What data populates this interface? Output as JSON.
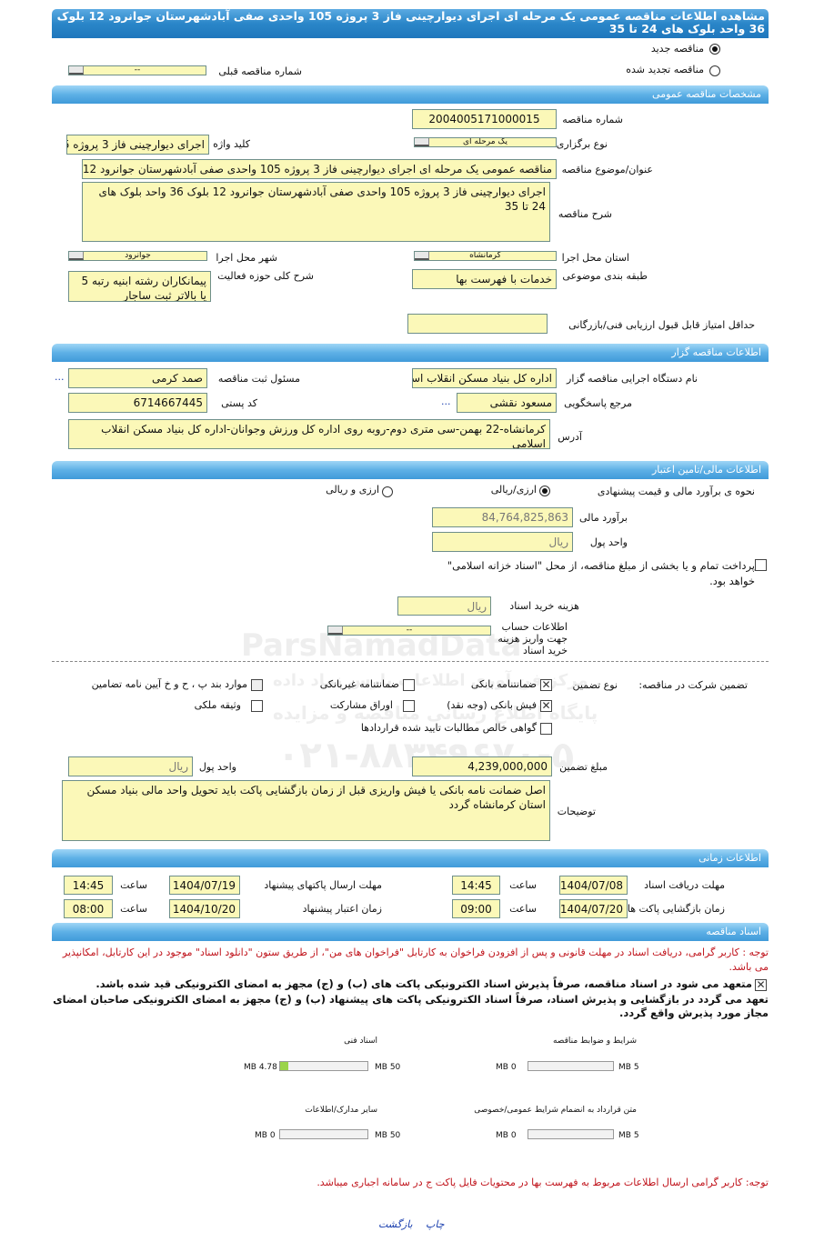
{
  "title": "مشاهده اطلاعات مناقصه عمومی یک مرحله ای اجرای دیوارچینی فاز 3 پروژه 105 واحدی صفی آبادشهرستان جوانرود 12 بلوک 36 واحد بلوک های 24 تا 35",
  "tender_type": {
    "new_label": "مناقصه جدید",
    "renewed_label": "مناقصه تجدید شده",
    "selected": "new",
    "prev_number_label": "شماره مناقصه قبلی",
    "prev_number_value": "--"
  },
  "general": {
    "section_title": "مشخصات مناقصه عمومی",
    "number_label": "شماره مناقصه",
    "number": "2004005171000015",
    "holding_type_label": "نوع برگزاری",
    "holding_type": "یک مرحله ای",
    "keyword_label": "کلید واژه",
    "keyword": "اجرای دیوارچینی فاز 3 پروژه 5",
    "subject_label": "عنوان/موضوع مناقصه",
    "subject": "مناقصه عمومی یک مرحله ای اجرای دیوارچینی فاز 3 پروژه 105 واحدی صفی آبادشهرستان جوانرود 12",
    "description_label": "شرح مناقصه",
    "description": "اجرای دیوارچینی فاز 3 پروژه 105 واحدی صفی آبادشهرستان جوانرود 12 بلوک 36 واحد بلوک های 24 تا 35",
    "province_label": "استان محل اجرا",
    "province": "کرمانشاه",
    "city_label": "شهر محل اجرا",
    "city": "جوانرود",
    "category_label": "طبقه بندی موضوعی",
    "category": "خدمات با فهرست بها",
    "activity_label": "شرح کلی حوزه فعالیت",
    "activity": "پیمانکاران رشته ابنیه رتبه 5 یا بالاتر ثبت ساجار",
    "min_score_label": "حداقل امتیاز قابل قبول ارزیابی فنی/بازرگانی",
    "min_score": ""
  },
  "organizer": {
    "section_title": "اطلاعات مناقصه گزار",
    "org_label": "نام دستگاه اجرایی مناقصه گزار",
    "org": "اداره کل بنیاد مسکن انقلاب اسلامی",
    "responsible_label": "مسئول ثبت مناقصه",
    "responsible": "صمد کرمی",
    "reference_label": "مرجع پاسخگویی",
    "reference": "مسعود نقشی",
    "postal_label": "کد پستی",
    "postal": "6714667445",
    "address_label": "آدرس",
    "address": "کرمانشاه-22 بهمن-سی متری دوم-روبه روی اداره کل ورزش وجوانان-اداره کل بنیاد مسکن انقلاب اسلامی",
    "more": "..."
  },
  "finance": {
    "section_title": "اطلاعات مالی/تامین اعتبار",
    "method_label": "نحوه ی برآورد مالی و قیمت پیشنهادی",
    "opt1": "ارزی/ریالی",
    "opt2": "ارزی و ریالی",
    "selected": "opt1",
    "estimate_label": "برآورد مالی",
    "estimate": "84,764,825,863",
    "currency_label": "واحد پول",
    "currency": "ریال",
    "treasury_text": "پرداخت تمام و یا بخشی از مبلغ مناقصه، از محل \"اسناد خزانه اسلامی\" خواهد بود.",
    "treasury_checked": false,
    "doc_fee_label": "هزینه خرید اسناد",
    "doc_fee": "ریال",
    "account_label": "اطلاعات حساب جهت واریز هزینه خرید اسناد",
    "account": "--"
  },
  "guarantee": {
    "label": "تضمین شرکت در مناقصه:",
    "type_label": "نوع تضمین",
    "options": [
      {
        "label": "ضمانتنامه بانکی",
        "checked": true
      },
      {
        "label": "ضمانتنامه غیربانکی",
        "checked": false
      },
      {
        "label": "موارد بند پ ، ح و خ آیین نامه تضامین",
        "checked": false
      },
      {
        "label": "فیش بانکی (وجه نقد)",
        "checked": true
      },
      {
        "label": "اوراق مشارکت",
        "checked": false
      },
      {
        "label": "وثیقه ملکی",
        "checked": false
      },
      {
        "label": "گواهی خالص مطالبات تایید شده قراردادها",
        "checked": false
      }
    ],
    "amount_label": "مبلغ تضمین",
    "amount": "4,239,000,000",
    "currency_label": "واحد پول",
    "currency": "ریال",
    "notes_label": "توضیحات",
    "notes": "اصل ضمانت نامه بانکی یا فیش واریزی قبل از زمان بازگشایی پاکت باید تحویل واحد مالی بنیاد مسکن استان کرمانشاه گردد"
  },
  "timing": {
    "section_title": "اطلاعات زمانی",
    "time_label": "ساعت",
    "doc_deadline_label": "مهلت دریافت اسناد",
    "doc_deadline_date": "1404/07/08",
    "doc_deadline_time": "14:45",
    "submit_deadline_label": "مهلت ارسال پاکتهای پیشنهاد",
    "submit_deadline_date": "1404/07/19",
    "submit_deadline_time": "14:45",
    "opening_label": "زمان بازگشایی پاکت ها",
    "opening_date": "1404/07/20",
    "opening_time": "09:00",
    "validity_label": "زمان اعتبار پیشنهاد",
    "validity_date": "1404/10/20",
    "validity_time": "08:00"
  },
  "documents": {
    "section_title": "اسناد مناقصه",
    "notice": "توجه : کاربر گرامی، دریافت اسناد در مهلت قانونی و پس از افزودن فراخوان به کارتابل \"فراخوان های من\"، از طریق ستون \"دانلود اسناد\" موجود در این کارتابل، امکانپذیر می باشد.",
    "commit1": "متعهد می شود در اسناد مناقصه، صرفاً پذیرش اسناد الکترونیکی پاکت های (ب) و (ج) مجهز به امضای الکترونیکی قید شده باشد.",
    "commit2": "تعهد می گردد در بازگشایی و پذیرش اسناد، صرفاً اسناد الکترونیکی پاکت های پیشنهاد (ب) و (ج) مجهز به امضای الکترونیکی صاحبان امضای مجاز مورد پذیرش واقع گردد.",
    "commit_checked": true,
    "files": [
      {
        "label": "شرایط و ضوابط مناقصه",
        "used": "0 MB",
        "max": "5 MB",
        "fraction": 0
      },
      {
        "label": "اسناد فنی",
        "used": "4.78 MB",
        "max": "50 MB",
        "fraction": 0.0956
      },
      {
        "label": "متن قرارداد به انضمام شرایط عمومی/خصوصی",
        "used": "0 MB",
        "max": "5 MB",
        "fraction": 0
      },
      {
        "label": "سایر مدارک/اطلاعات",
        "used": "0 MB",
        "max": "50 MB",
        "fraction": 0
      }
    ],
    "notice2": "توجه: کاربر گرامی ارسال اطلاعات مربوط به فهرست بها در محتویات فایل پاکت ج در سامانه اجباری میباشد."
  },
  "footer": {
    "print": "چاپ",
    "back": "بازگشت"
  },
  "watermark": {
    "line1": "ParsNamadData",
    "line2": "مرکز فن آوری اطلاعات پارس نماد داده",
    "line3": "پایگاه اطلاع رسانی مناقصه و مزایده",
    "phone": "۰۲۱-۸۸۳۴۹۶۷۰-۵"
  },
  "colors": {
    "title_bar": "#2a86c8",
    "section_bar": "#5db0e6",
    "input_bg": "#fbf8b8",
    "notice_red": "#c0141c",
    "link_blue": "#1a3fae"
  }
}
